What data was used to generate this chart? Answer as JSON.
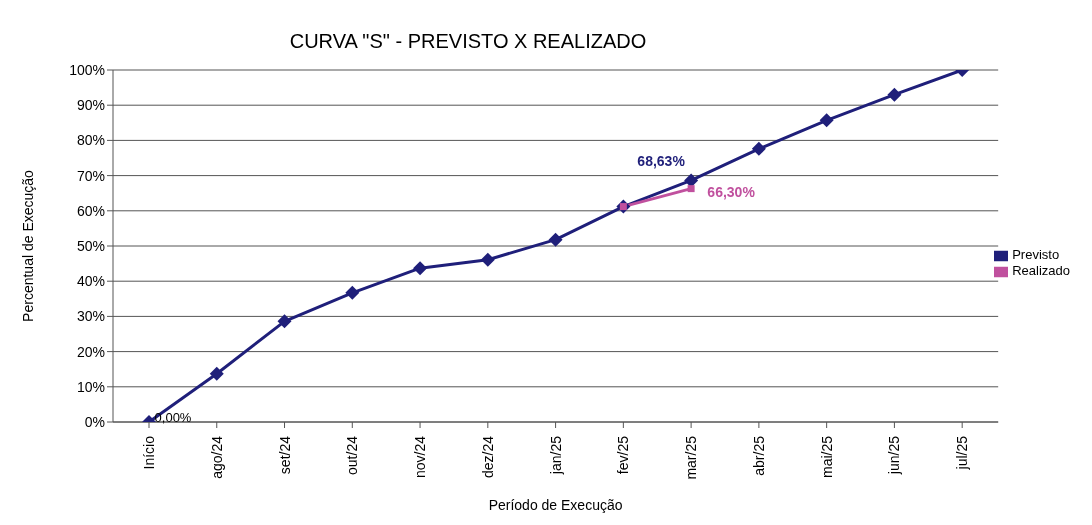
{
  "chart_data": {
    "type": "line",
    "title": "CURVA \"S\" - PREVISTO X REALIZADO",
    "xlabel": "Período de Execução",
    "ylabel": "Percentual de Execução",
    "categories": [
      "Início",
      "ago/24",
      "set/24",
      "out/24",
      "nov/24",
      "dez/24",
      "jan/25",
      "fev/25",
      "mar/25",
      "abr/25",
      "mai/25",
      "jun/25",
      "jul/25"
    ],
    "series": [
      {
        "name": "Previsto",
        "color": "#1f1f7a",
        "marker": "diamond",
        "values": [
          0,
          13.7,
          28.6,
          36.7,
          43.7,
          46.1,
          51.8,
          61.2,
          68.63,
          77.6,
          85.7,
          93,
          100
        ],
        "value_labels": [
          "0,00%",
          null,
          null,
          null,
          null,
          null,
          null,
          null,
          "68,63%",
          null,
          null,
          null,
          null
        ]
      },
      {
        "name": "Realizado",
        "color": "#c0509e",
        "marker": "square",
        "values": [
          null,
          null,
          null,
          null,
          null,
          null,
          null,
          61.2,
          66.3,
          null,
          null,
          null,
          null
        ],
        "value_labels": [
          null,
          null,
          null,
          null,
          null,
          null,
          null,
          null,
          "66,30%",
          null,
          null,
          null,
          null
        ]
      }
    ],
    "ylim": [
      0,
      100
    ],
    "yticks": [
      {
        "value": 0,
        "label": "0%"
      },
      {
        "value": 10,
        "label": "10%"
      },
      {
        "value": 20,
        "label": "20%"
      },
      {
        "value": 30,
        "label": "30%"
      },
      {
        "value": 40,
        "label": "40%"
      },
      {
        "value": 50,
        "label": "50%"
      },
      {
        "value": 60,
        "label": "60%"
      },
      {
        "value": 70,
        "label": "70%"
      },
      {
        "value": 80,
        "label": "80%"
      },
      {
        "value": 90,
        "label": "90%"
      },
      {
        "value": 100,
        "label": "100%"
      }
    ],
    "grid": "y",
    "legend": "right"
  }
}
